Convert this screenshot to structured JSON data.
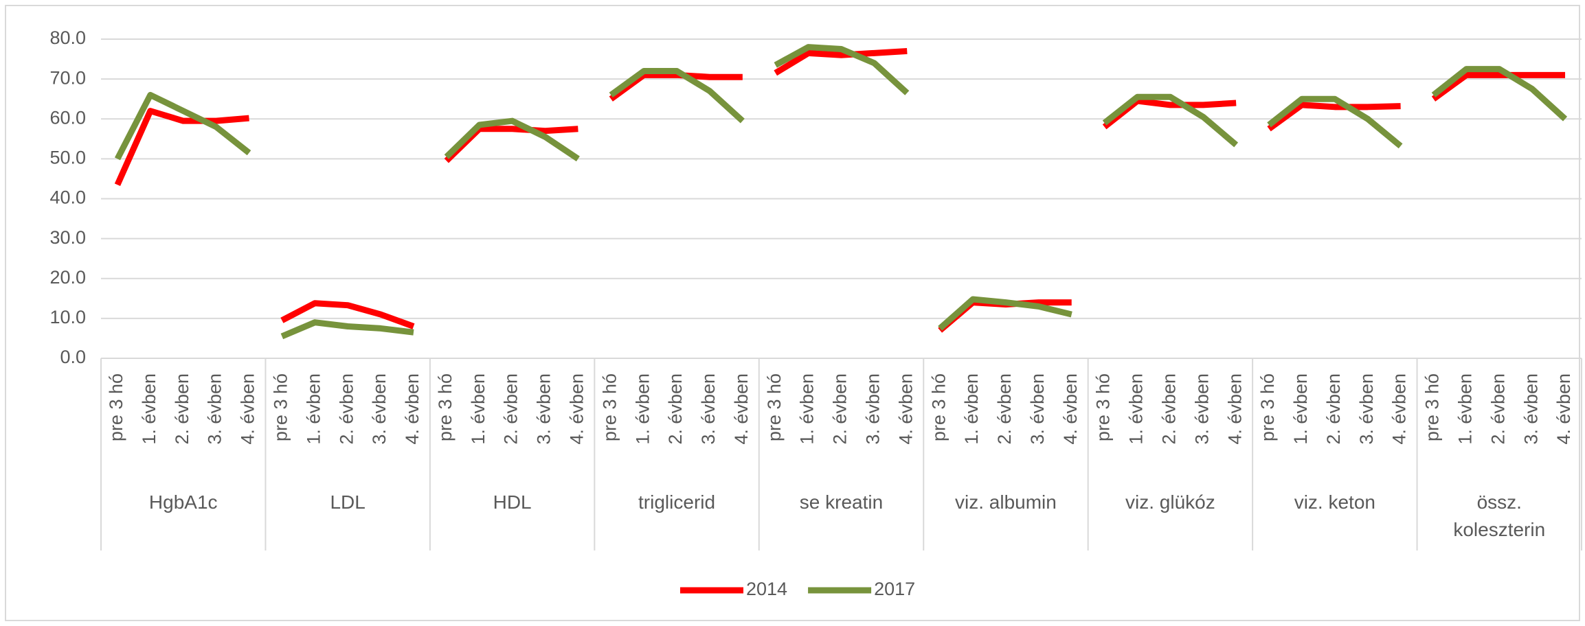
{
  "chart_data": {
    "type": "line",
    "groups": [
      {
        "name": "HgbA1c",
        "categories": [
          "pre 3 hó",
          "1. évben",
          "2. évben",
          "3. évben",
          "4. évben"
        ]
      },
      {
        "name": "LDL",
        "categories": [
          "pre 3 hó",
          "1. évben",
          "2. évben",
          "3. évben",
          "4. évben"
        ]
      },
      {
        "name": "HDL",
        "categories": [
          "pre 3 hó",
          "1. évben",
          "2. évben",
          "3. évben",
          "4. évben"
        ]
      },
      {
        "name": "triglicerid",
        "categories": [
          "pre 3 hó",
          "1. évben",
          "2. évben",
          "3. évben",
          "4. évben"
        ]
      },
      {
        "name": "se kreatin",
        "categories": [
          "pre 3 hó",
          "1. évben",
          "2. évben",
          "3. évben",
          "4. évben"
        ]
      },
      {
        "name": "viz. albumin",
        "categories": [
          "pre 3 hó",
          "1. évben",
          "2. évben",
          "3. évben",
          "4. évben"
        ]
      },
      {
        "name": "viz. glükóz",
        "categories": [
          "pre 3 hó",
          "1. évben",
          "2. évben",
          "3. évben",
          "4. évben"
        ]
      },
      {
        "name": "viz. keton",
        "categories": [
          "pre 3 hó",
          "1. évben",
          "2. évben",
          "3. évben",
          "4. évben"
        ]
      },
      {
        "name": "össz. koleszterin",
        "categories": [
          "pre 3 hó",
          "1. évben",
          "2. évben",
          "3. évben",
          "4. évben"
        ]
      }
    ],
    "series": [
      {
        "name": "2014",
        "color": "#ff0000",
        "values": [
          [
            43.5,
            62,
            59.5,
            59.5,
            60.2
          ],
          [
            9.5,
            13.8,
            13.3,
            11,
            8
          ],
          [
            49.5,
            57.5,
            57.5,
            57,
            57.5
          ],
          [
            65,
            71,
            71,
            70.5,
            70.5
          ],
          [
            71.5,
            76.5,
            76,
            76.5,
            77
          ],
          [
            7,
            14,
            13.5,
            14,
            14
          ],
          [
            58,
            64.5,
            63.5,
            63.5,
            64
          ],
          [
            57.5,
            63.5,
            63,
            63,
            63.2
          ],
          [
            65,
            71,
            71,
            71,
            71
          ]
        ]
      },
      {
        "name": "2017",
        "color": "#77933c",
        "values": [
          [
            50,
            66,
            62,
            58,
            51.5
          ],
          [
            5.5,
            9,
            8,
            7.5,
            6.5
          ],
          [
            50.5,
            58.5,
            59.5,
            55.5,
            50
          ],
          [
            66,
            72,
            72,
            67,
            59.5
          ],
          [
            73.5,
            78,
            77.5,
            74,
            66.5
          ],
          [
            7.5,
            14.8,
            14,
            13,
            11
          ],
          [
            59,
            65.5,
            65.5,
            60.5,
            53.5
          ],
          [
            58.5,
            65,
            65,
            60,
            53.2
          ],
          [
            66,
            72.5,
            72.5,
            67.5,
            60
          ]
        ]
      }
    ],
    "ylim": [
      0,
      80
    ],
    "yticks": [
      {
        "value": 0,
        "label": "0.0"
      },
      {
        "value": 10,
        "label": "10.0"
      },
      {
        "value": 20,
        "label": "20.0"
      },
      {
        "value": 30,
        "label": "30.0"
      },
      {
        "value": 40,
        "label": "40.0"
      },
      {
        "value": 50,
        "label": "50.0"
      },
      {
        "value": 60,
        "label": "60.0"
      },
      {
        "value": 70,
        "label": "70.0"
      },
      {
        "value": 80,
        "label": "80.0"
      }
    ],
    "grid": true
  }
}
